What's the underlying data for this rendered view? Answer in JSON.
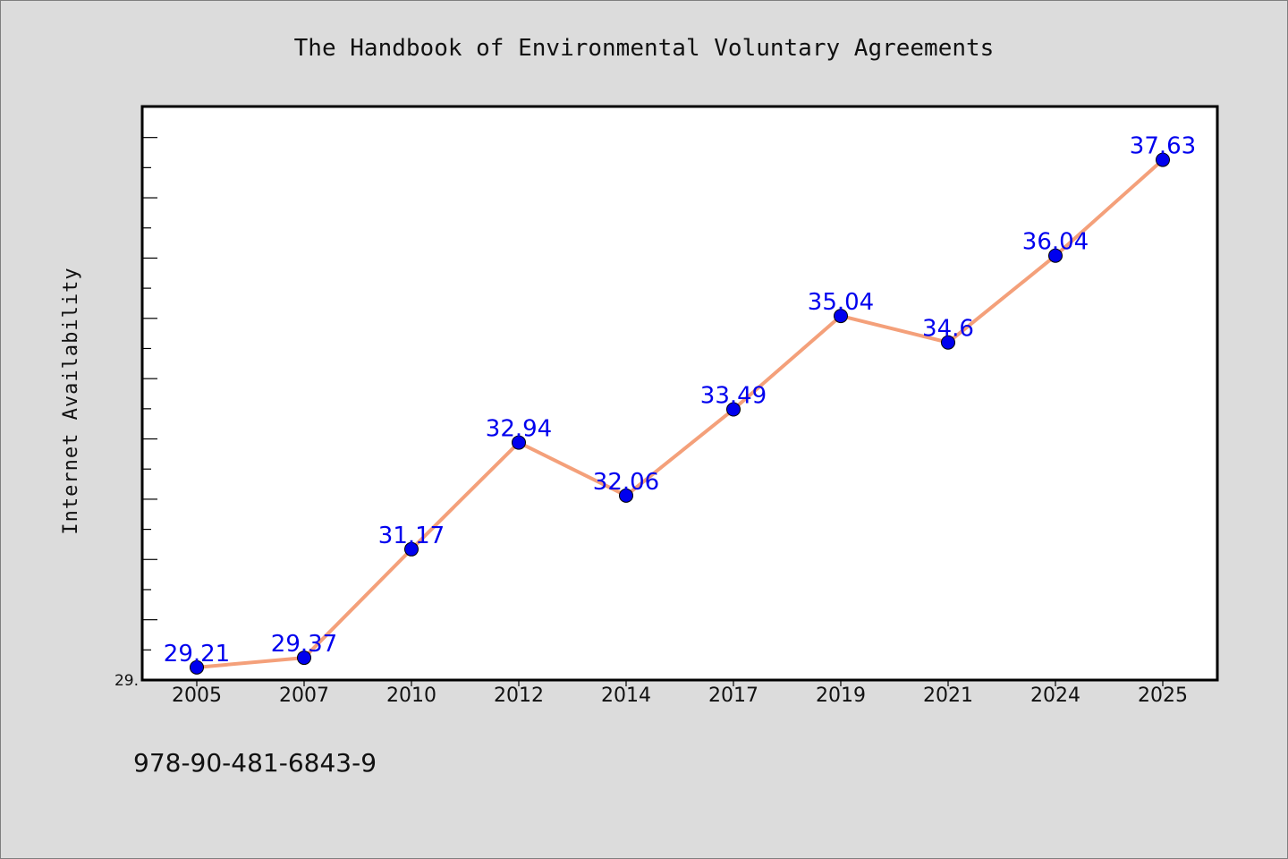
{
  "chart_data": {
    "type": "line",
    "title": "The Handbook of Environmental Voluntary Agreements",
    "xlabel": "",
    "ylabel": "Internet Availability",
    "categories": [
      "2005",
      "2007",
      "2010",
      "2012",
      "2014",
      "2017",
      "2019",
      "2021",
      "2024",
      "2025"
    ],
    "series": [
      {
        "values": [
          29.21,
          29.37,
          31.17,
          32.94,
          32.06,
          33.49,
          35.04,
          34.6,
          36.04,
          37.63
        ],
        "data_labels": [
          "29.21",
          "29.37",
          "31.17",
          "32.94",
          "32.06",
          "33.49",
          "35.04",
          "34.6",
          "36.04",
          "37.63"
        ],
        "line_color": "#f4a07a",
        "marker_color": "#0000ee",
        "label_color": "#0000ee"
      }
    ],
    "y_min_label": "29.",
    "ylim": [
      29.0,
      38.5
    ],
    "grid": false,
    "legend": "none"
  },
  "footer": {
    "isbn": "978-90-481-6843-9"
  }
}
